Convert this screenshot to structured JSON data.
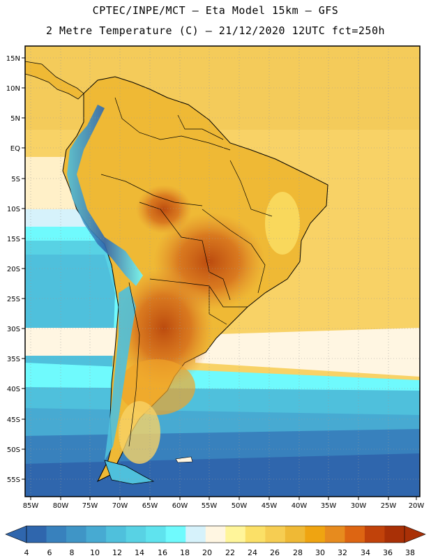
{
  "title": {
    "line1": "CPTEC/INPE/MCT –  Eta Model 15km – GFS",
    "line2": "2 Metre Temperature (C) – 21/12/2020 12UTC fct=250h"
  },
  "map": {
    "lat_labels": [
      "15N",
      "10N",
      "5N",
      "EQ",
      "5S",
      "10S",
      "15S",
      "20S",
      "25S",
      "30S",
      "35S",
      "40S",
      "45S",
      "50S",
      "55S"
    ],
    "lon_labels": [
      "85W",
      "80W",
      "75W",
      "70W",
      "65W",
      "60W",
      "55W",
      "50W",
      "45W",
      "40W",
      "35W",
      "30W",
      "25W",
      "20W"
    ],
    "lat_range": [
      -58,
      17
    ],
    "lon_range": [
      -85.5,
      -20
    ]
  },
  "colorbar": {
    "labels": [
      "4",
      "6",
      "8",
      "10",
      "12",
      "14",
      "16",
      "18",
      "20",
      "22",
      "24",
      "26",
      "28",
      "30",
      "32",
      "34",
      "36",
      "38"
    ],
    "colors": [
      "#2f66ad",
      "#3881bd",
      "#3f95c6",
      "#47aad2",
      "#4fc0dc",
      "#58d2e4",
      "#5fe3ee",
      "#6ffafd",
      "#d6f2fb",
      "#fff6e2",
      "#fff59a",
      "#fbe067",
      "#f6cd52",
      "#efb935",
      "#efa411",
      "#e78b1e",
      "#dd6512",
      "#c1420a",
      "#a93006"
    ]
  }
}
